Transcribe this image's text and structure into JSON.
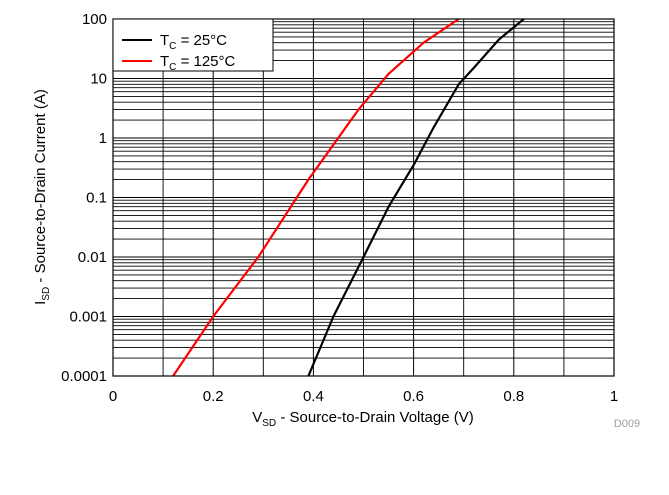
{
  "chart_data": {
    "type": "line",
    "xlabel": "V_SD - Source-to-Drain Voltage (V)",
    "xlabel_parts": {
      "main": "V",
      "sub": "SD",
      "rest": " - Source-to-Drain Voltage (V)"
    },
    "ylabel": "I_SD - Source-to-Drain Current (A)",
    "ylabel_parts": {
      "main": "I",
      "sub": "SD",
      "rest": " - Source-to-Drain Current (A)"
    },
    "xlim": [
      0,
      1
    ],
    "ylim": [
      0.0001,
      100
    ],
    "yscale": "log",
    "grid": true,
    "legend_position": "top-left",
    "x_ticks": [
      "0",
      "0.2",
      "0.4",
      "0.6",
      "0.8",
      "1"
    ],
    "x_tick_values": [
      0,
      0.2,
      0.4,
      0.6,
      0.8,
      1
    ],
    "y_ticks": [
      "0.0001",
      "0.001",
      "0.01",
      "0.1",
      "1",
      "10",
      "100"
    ],
    "y_tick_values": [
      0.0001,
      0.001,
      0.01,
      0.1,
      1,
      10,
      100
    ],
    "series": [
      {
        "name": "T_C = 25°C",
        "legend": {
          "main": "T",
          "sub": "C",
          "rest": " = 25°C"
        },
        "color": "#000000",
        "x": [
          0.39,
          0.44,
          0.5,
          0.55,
          0.6,
          0.64,
          0.69,
          0.72,
          0.77,
          0.82
        ],
        "y": [
          0.0001,
          0.001,
          0.01,
          0.07,
          0.35,
          1.5,
          8,
          15,
          45,
          100
        ]
      },
      {
        "name": "T_C = 125°C",
        "legend": {
          "main": "T",
          "sub": "C",
          "rest": " = 125°C"
        },
        "color": "#ff0000",
        "x": [
          0.12,
          0.2,
          0.29,
          0.39,
          0.49,
          0.55,
          0.62,
          0.69
        ],
        "y": [
          0.0001,
          0.001,
          0.01,
          0.2,
          3,
          12,
          40,
          100
        ]
      }
    ],
    "figure_code": "D009"
  }
}
